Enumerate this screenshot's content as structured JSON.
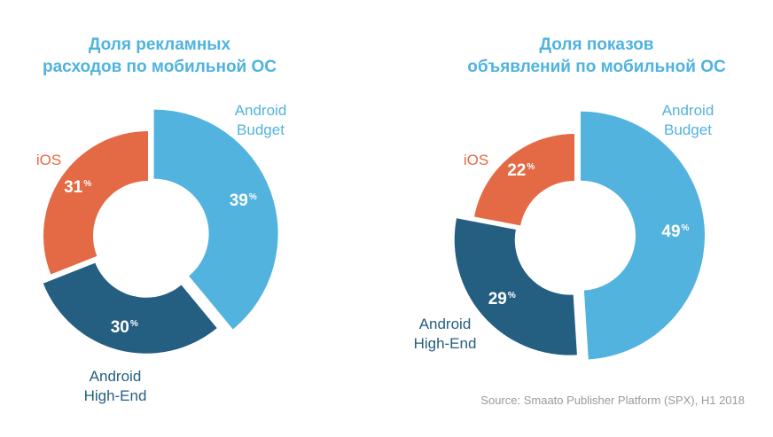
{
  "colors": {
    "title": "#4fb3e0",
    "android_budget": "#52b3de",
    "android_high_end": "#245f82",
    "ios": "#e46a45",
    "source_text": "#9a9a9a"
  },
  "chart_data": [
    {
      "type": "pie",
      "title_lines": [
        "Доля рекламных",
        "расходов по мобильной ОС"
      ],
      "slices": [
        {
          "label_lines": [
            "Android",
            "Budget"
          ],
          "value": 39,
          "display": "39"
        },
        {
          "label_lines": [
            "Android",
            "High-End"
          ],
          "value": 30,
          "display": "30"
        },
        {
          "label_lines": [
            "iOS"
          ],
          "value": 31,
          "display": "31"
        }
      ],
      "unit": "%"
    },
    {
      "type": "pie",
      "title_lines": [
        "Доля показов",
        "объявлений по мобильной ОС"
      ],
      "slices": [
        {
          "label_lines": [
            "Android",
            "Budget"
          ],
          "value": 49,
          "display": "49"
        },
        {
          "label_lines": [
            "Android",
            "High-End"
          ],
          "value": 29,
          "display": "29"
        },
        {
          "label_lines": [
            "iOS"
          ],
          "value": 22,
          "display": "22"
        }
      ],
      "unit": "%"
    }
  ],
  "source": "Source: Smaato Publisher Platform (SPX), H1 2018"
}
